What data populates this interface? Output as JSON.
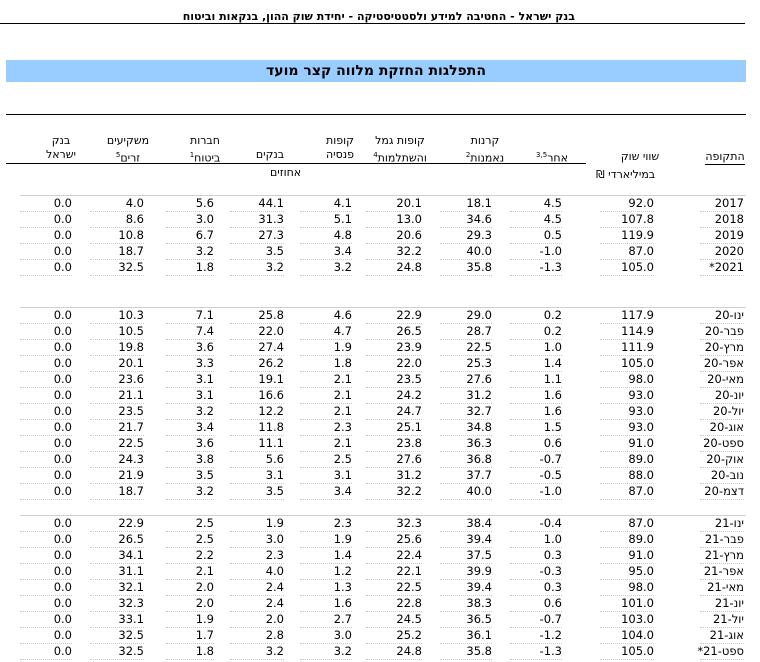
{
  "header": "בנק ישראל  -  החטיבה למידע ולסטטיסטיקה  -  יחידת שוק ההון, בנקאות וביטוח",
  "title": "התפלגות החזקת מלווה קצר מועד",
  "columns": {
    "period": "התקופה",
    "market_value_line1": "שווי שוק",
    "market_value_unit": "במיליארדי ₪",
    "other": "אחר",
    "other_sup": "3,5",
    "mutual_l1": "קרנות",
    "mutual_l2": "נאמנות",
    "mutual_sup": "2",
    "provident_l1": "קופות גמל",
    "provident_l2": "והשתלמות",
    "provident_sup": "4",
    "pension_l1": "קופות",
    "pension_l2": "פנסיה",
    "banks": "בנקים",
    "insurance_l1": "חברות",
    "insurance_l2": "ביטוח",
    "insurance_sup": "1",
    "foreign_l1": "משקיעים",
    "foreign_l2": "זרים",
    "foreign_sup": "5",
    "boi_l1": "בנק",
    "boi_l2": "ישראל",
    "percent_label": "אחוזים"
  },
  "annual": [
    {
      "period": "2017",
      "mv": "92.0",
      "other": "4.5",
      "mutual": "18.1",
      "provident": "20.1",
      "pension": "4.1",
      "banks": "44.1",
      "insurance": "5.6",
      "foreign": "4.0",
      "boi": "0.0"
    },
    {
      "period": "2018",
      "mv": "107.8",
      "other": "4.5",
      "mutual": "34.6",
      "provident": "13.0",
      "pension": "5.1",
      "banks": "31.3",
      "insurance": "3.0",
      "foreign": "8.6",
      "boi": "0.0"
    },
    {
      "period": "2019",
      "mv": "119.9",
      "other": "0.5",
      "mutual": "29.3",
      "provident": "20.6",
      "pension": "4.8",
      "banks": "27.3",
      "insurance": "6.7",
      "foreign": "10.8",
      "boi": "0.0"
    },
    {
      "period": "2020",
      "mv": "87.0",
      "other": "-1.0",
      "mutual": "40.0",
      "provident": "32.2",
      "pension": "3.4",
      "banks": "3.5",
      "insurance": "3.2",
      "foreign": "18.7",
      "boi": "0.0"
    },
    {
      "period": "2021*",
      "mv": "105.0",
      "other": "-1.3",
      "mutual": "35.8",
      "provident": "24.8",
      "pension": "3.2",
      "banks": "3.2",
      "insurance": "1.8",
      "foreign": "32.5",
      "boi": "0.0"
    }
  ],
  "monthly_2020": [
    {
      "period": "ינו-20",
      "mv": "117.9",
      "other": "0.2",
      "mutual": "29.0",
      "provident": "22.9",
      "pension": "4.6",
      "banks": "25.8",
      "insurance": "7.1",
      "foreign": "10.3",
      "boi": "0.0"
    },
    {
      "period": "פבר-20",
      "mv": "114.9",
      "other": "0.2",
      "mutual": "28.7",
      "provident": "26.5",
      "pension": "4.7",
      "banks": "22.0",
      "insurance": "7.4",
      "foreign": "10.5",
      "boi": "0.0"
    },
    {
      "period": "מרץ-20",
      "mv": "111.9",
      "other": "1.0",
      "mutual": "22.5",
      "provident": "23.9",
      "pension": "1.9",
      "banks": "27.4",
      "insurance": "3.6",
      "foreign": "19.8",
      "boi": "0.0"
    },
    {
      "period": "אפר-20",
      "mv": "105.0",
      "other": "1.4",
      "mutual": "25.3",
      "provident": "22.0",
      "pension": "1.8",
      "banks": "26.2",
      "insurance": "3.3",
      "foreign": "20.1",
      "boi": "0.0"
    },
    {
      "period": "מאי-20",
      "mv": "98.0",
      "other": "1.1",
      "mutual": "27.6",
      "provident": "23.5",
      "pension": "2.1",
      "banks": "19.1",
      "insurance": "3.1",
      "foreign": "23.6",
      "boi": "0.0"
    },
    {
      "period": "יונ-20",
      "mv": "93.0",
      "other": "1.6",
      "mutual": "31.2",
      "provident": "24.2",
      "pension": "2.1",
      "banks": "16.6",
      "insurance": "3.1",
      "foreign": "21.1",
      "boi": "0.0"
    },
    {
      "period": "יול-20",
      "mv": "93.0",
      "other": "1.6",
      "mutual": "32.7",
      "provident": "24.7",
      "pension": "2.1",
      "banks": "12.2",
      "insurance": "3.2",
      "foreign": "23.5",
      "boi": "0.0"
    },
    {
      "period": "אוג-20",
      "mv": "93.0",
      "other": "1.5",
      "mutual": "34.8",
      "provident": "25.1",
      "pension": "2.3",
      "banks": "11.8",
      "insurance": "3.4",
      "foreign": "21.7",
      "boi": "0.0"
    },
    {
      "period": "ספט-20",
      "mv": "91.0",
      "other": "0.6",
      "mutual": "36.3",
      "provident": "23.8",
      "pension": "2.1",
      "banks": "11.1",
      "insurance": "3.6",
      "foreign": "22.5",
      "boi": "0.0"
    },
    {
      "period": "אוק-20",
      "mv": "89.0",
      "other": "-0.7",
      "mutual": "36.8",
      "provident": "27.6",
      "pension": "2.5",
      "banks": "5.6",
      "insurance": "3.8",
      "foreign": "24.3",
      "boi": "0.0"
    },
    {
      "period": "נוב-20",
      "mv": "88.0",
      "other": "-0.5",
      "mutual": "37.7",
      "provident": "31.2",
      "pension": "3.1",
      "banks": "3.1",
      "insurance": "3.5",
      "foreign": "21.9",
      "boi": "0.0"
    },
    {
      "period": "דצמ-20",
      "mv": "87.0",
      "other": "-1.0",
      "mutual": "40.0",
      "provident": "32.2",
      "pension": "3.4",
      "banks": "3.5",
      "insurance": "3.2",
      "foreign": "18.7",
      "boi": "0.0"
    }
  ],
  "monthly_2021": [
    {
      "period": "ינו-21",
      "mv": "87.0",
      "other": "-0.4",
      "mutual": "38.4",
      "provident": "32.3",
      "pension": "2.3",
      "banks": "1.9",
      "insurance": "2.5",
      "foreign": "22.9",
      "boi": "0.0"
    },
    {
      "period": "פבר-21",
      "mv": "89.0",
      "other": "1.0",
      "mutual": "39.4",
      "provident": "25.6",
      "pension": "1.9",
      "banks": "3.0",
      "insurance": "2.5",
      "foreign": "26.5",
      "boi": "0.0"
    },
    {
      "period": "מרץ-21",
      "mv": "91.0",
      "other": "0.3",
      "mutual": "37.5",
      "provident": "22.4",
      "pension": "1.4",
      "banks": "2.3",
      "insurance": "2.2",
      "foreign": "34.1",
      "boi": "0.0"
    },
    {
      "period": "אפר-21",
      "mv": "95.0",
      "other": "-0.3",
      "mutual": "39.9",
      "provident": "22.1",
      "pension": "1.2",
      "banks": "4.0",
      "insurance": "2.1",
      "foreign": "31.1",
      "boi": "0.0"
    },
    {
      "period": "מאי-21",
      "mv": "98.0",
      "other": "0.3",
      "mutual": "39.4",
      "provident": "22.5",
      "pension": "1.3",
      "banks": "2.4",
      "insurance": "2.0",
      "foreign": "32.1",
      "boi": "0.0"
    },
    {
      "period": "יונ-21",
      "mv": "101.0",
      "other": "0.6",
      "mutual": "38.3",
      "provident": "22.8",
      "pension": "1.6",
      "banks": "2.4",
      "insurance": "2.0",
      "foreign": "32.3",
      "boi": "0.0"
    },
    {
      "period": "יול-21",
      "mv": "103.0",
      "other": "-0.7",
      "mutual": "36.5",
      "provident": "24.5",
      "pension": "2.7",
      "banks": "2.0",
      "insurance": "1.9",
      "foreign": "33.1",
      "boi": "0.0"
    },
    {
      "period": "אוג-21",
      "mv": "104.0",
      "other": "-1.2",
      "mutual": "36.1",
      "provident": "25.2",
      "pension": "3.0",
      "banks": "2.8",
      "insurance": "1.7",
      "foreign": "32.5",
      "boi": "0.0"
    },
    {
      "period": "ספט-21*",
      "mv": "105.0",
      "other": "-1.3",
      "mutual": "35.8",
      "provident": "24.8",
      "pension": "3.2",
      "banks": "3.2",
      "insurance": "1.8",
      "foreign": "32.5",
      "boi": "0.0"
    }
  ]
}
